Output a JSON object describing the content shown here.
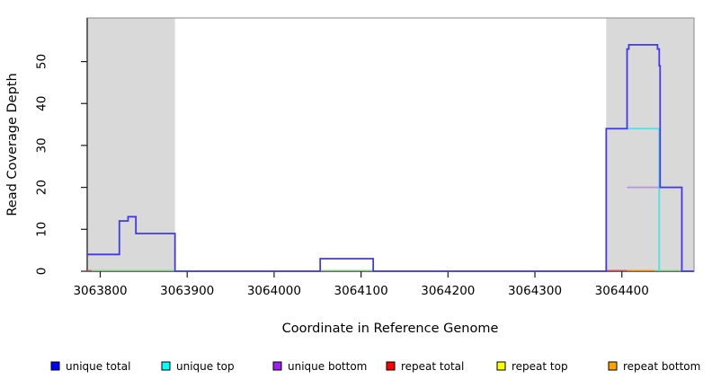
{
  "chart_data": {
    "type": "line",
    "subtype": "step-coverage",
    "title": "",
    "xlabel": "Coordinate in Reference Genome",
    "ylabel": "Read Coverage Depth",
    "xlim": [
      3063785,
      3064483
    ],
    "ylim": [
      0,
      60.4
    ],
    "x_ticks": [
      3063800,
      3063900,
      3064000,
      3064100,
      3064200,
      3064300,
      3064400
    ],
    "y_ticks": [
      0,
      10,
      20,
      30,
      40,
      50
    ],
    "grid": false,
    "legend_position": "bottom",
    "highlight_color": "#d9d9d9",
    "highlight_regions": [
      {
        "x0": 3063785,
        "x1": 3063886
      },
      {
        "x0": 3064382,
        "x1": 3064483
      }
    ],
    "series": [
      {
        "name": "repeat total",
        "legend_color": "#ff0000",
        "line_color": "#d95c66",
        "steps": null,
        "zero_segments": [
          [
            3063785,
            3063790
          ],
          [
            3064382,
            3064406
          ]
        ]
      },
      {
        "name": "repeat top",
        "legend_color": "#ffff00",
        "line_color": "#8fd88f",
        "steps": null,
        "zero_segments": [
          [
            3063790,
            3063886
          ],
          [
            3064053,
            3064114
          ],
          [
            3064437,
            3064468
          ]
        ]
      },
      {
        "name": "repeat bottom",
        "legend_color": "#ffa500",
        "line_color": "#ff9912",
        "steps": null,
        "zero_segments": [
          [
            3064406,
            3064437
          ]
        ]
      },
      {
        "name": "unique bottom",
        "legend_color": "#a020f0",
        "line_color": "#bf8fe8",
        "steps": [
          [
            3064406,
            20
          ],
          [
            3064469,
            0
          ],
          [
            3064483,
            0
          ]
        ],
        "zero_segments": []
      },
      {
        "name": "unique top",
        "legend_color": "#00ffff",
        "line_color": "#4fe0e8",
        "steps": [
          [
            3064382,
            34
          ],
          [
            3064443,
            0
          ]
        ],
        "zero_segments": []
      },
      {
        "name": "unique total",
        "legend_color": "#0000ff",
        "line_color": "#4339e8",
        "steps": [
          [
            3063785,
            4
          ],
          [
            3063822,
            12
          ],
          [
            3063832,
            13
          ],
          [
            3063841,
            9
          ],
          [
            3063886,
            0
          ],
          [
            3064053,
            3
          ],
          [
            3064114,
            0
          ],
          [
            3064382,
            34
          ],
          [
            3064406,
            53
          ],
          [
            3064408,
            54
          ],
          [
            3064441,
            53
          ],
          [
            3064443,
            49
          ],
          [
            3064444,
            20
          ],
          [
            3064469,
            0
          ],
          [
            3064483,
            0
          ]
        ],
        "zero_segments": []
      }
    ],
    "legend_order": [
      "unique total",
      "unique top",
      "unique bottom",
      "repeat total",
      "repeat top",
      "repeat bottom"
    ]
  }
}
